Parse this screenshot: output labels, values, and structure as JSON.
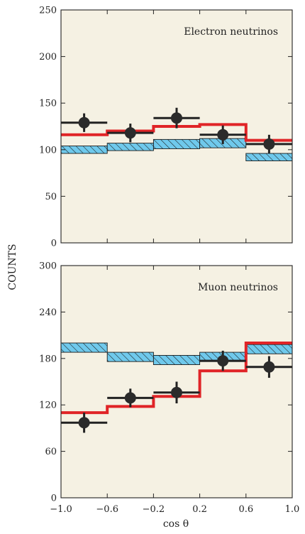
{
  "chart_data": [
    {
      "type": "histogram",
      "title": "Electron neutrinos",
      "ylabel": "COUNTS",
      "xlabel": "cos θ",
      "xlim": [
        -1.0,
        1.0
      ],
      "ylim": [
        0,
        250
      ],
      "yticks": [
        "0",
        "50",
        "100",
        "150",
        "200",
        "250"
      ],
      "bin_edges": [
        -1.0,
        -0.6,
        -0.2,
        0.2,
        0.6,
        1.0
      ],
      "prediction_band": {
        "low": [
          96,
          99,
          101,
          102,
          88
        ],
        "high": [
          104,
          107,
          111,
          112,
          96
        ],
        "color": "#6fc9ec"
      },
      "best_fit": {
        "values": [
          116,
          120,
          125,
          127,
          110
        ],
        "color": "#e02427"
      },
      "data": {
        "x": [
          -0.8,
          -0.4,
          0.0,
          0.4,
          0.8
        ],
        "y": [
          129,
          118,
          134,
          116,
          106
        ],
        "yerr": [
          10,
          10,
          11,
          10,
          10
        ]
      }
    },
    {
      "type": "histogram",
      "title": "Muon neutrinos",
      "xlabel": "cos θ",
      "xlim": [
        -1.0,
        1.0
      ],
      "ylim": [
        0,
        300
      ],
      "yticks": [
        "0",
        "60",
        "120",
        "180",
        "240",
        "300"
      ],
      "xticks": [
        "−1.0",
        "−0.6",
        "−0.2",
        "0.2",
        "0.6",
        "1.0"
      ],
      "bin_edges": [
        -1.0,
        -0.6,
        -0.2,
        0.2,
        0.6,
        1.0
      ],
      "prediction_band": {
        "low": [
          188,
          176,
          172,
          176,
          186
        ],
        "high": [
          200,
          188,
          184,
          188,
          198
        ],
        "color": "#6fc9ec"
      },
      "best_fit": {
        "values": [
          110,
          118,
          131,
          164,
          200
        ],
        "color": "#e02427"
      },
      "data": {
        "x": [
          -0.8,
          -0.4,
          0.0,
          0.4,
          0.8
        ],
        "y": [
          97,
          129,
          136,
          177,
          169
        ],
        "yerr": [
          13,
          12,
          14,
          13,
          14
        ]
      }
    }
  ],
  "labels": {
    "ylabel": "COUNTS",
    "xlabel": "cos θ",
    "panel1_title": "Electron neutrinos",
    "panel2_title": "Muon neutrinos"
  }
}
